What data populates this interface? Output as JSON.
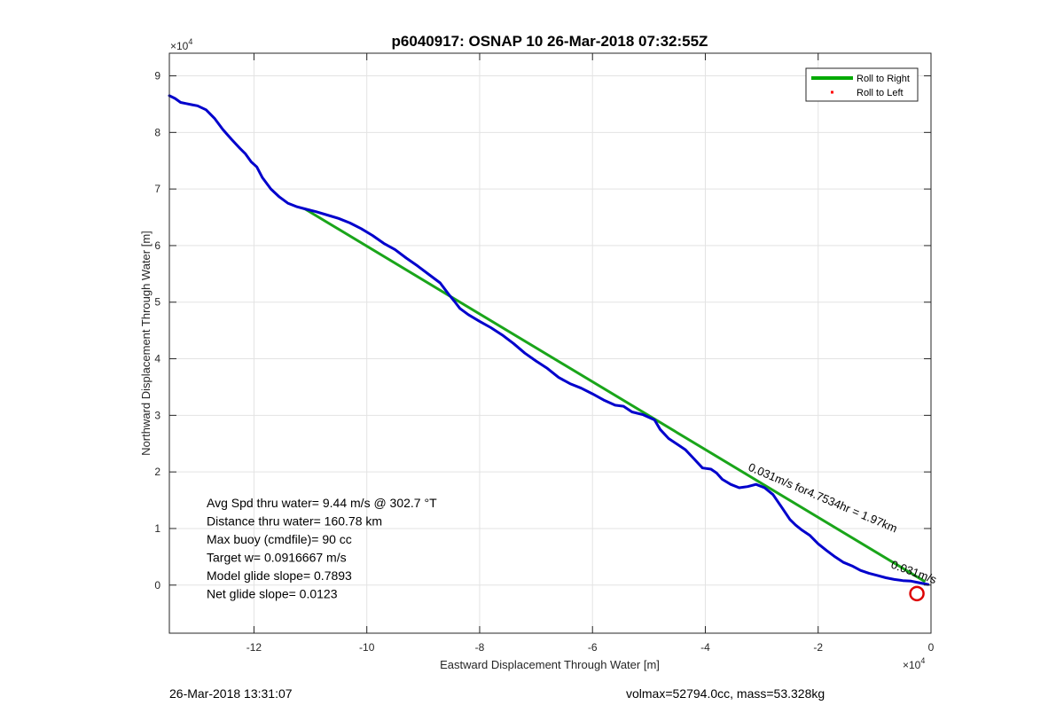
{
  "chart_data": {
    "type": "line",
    "title": "p6040917: OSNAP 10 26-Mar-2018 07:32:55Z",
    "xlabel": "Eastward Displacement Through Water [m]",
    "ylabel": "Northward Displacement Through Water [m]",
    "x_exponent_label": "×10",
    "y_exponent_label": "×10",
    "exponent_power": "4",
    "xlim": [
      -135000,
      0
    ],
    "ylim": [
      -8500,
      94000
    ],
    "xticks": [
      -120000,
      -100000,
      -80000,
      -60000,
      -40000,
      -20000,
      0
    ],
    "xticklabels": [
      "-12",
      "-10",
      "-8",
      "-6",
      "-4",
      "-2",
      "0"
    ],
    "yticks": [
      0,
      10000,
      20000,
      30000,
      40000,
      50000,
      60000,
      70000,
      80000,
      90000
    ],
    "yticklabels": [
      "0",
      "1",
      "2",
      "3",
      "4",
      "5",
      "6",
      "7",
      "8",
      "9"
    ],
    "grid": true,
    "legend_position": "top-right",
    "legend": [
      {
        "label": "Roll to Right",
        "color": "#00aa00",
        "marker": "line"
      },
      {
        "label": "Roll to Left",
        "color": "#ff0000",
        "marker": "dot"
      }
    ],
    "series": [
      {
        "name": "Roll to Right",
        "color": "#1aa51a",
        "style": "line",
        "x": [
          -111000,
          -1200
        ],
        "y": [
          66500,
          700
        ]
      },
      {
        "color": "#0000cc",
        "style": "line",
        "x": [
          -135000,
          -134000,
          -133000,
          -132000,
          -131000,
          -130000,
          -128500,
          -127000,
          -125500,
          -124000,
          -122500,
          -121500,
          -120500,
          -119500,
          -118500,
          -117000,
          -115500,
          -114000,
          -112500,
          -111000,
          -109000,
          -107000,
          -105000,
          -103000,
          -101000,
          -99000,
          -97000,
          -95000,
          -93000,
          -91000,
          -89000,
          -87000,
          -85500,
          -84500,
          -83500,
          -82000,
          -80000,
          -78000,
          -76000,
          -74000,
          -72000,
          -70000,
          -68000,
          -66000,
          -64000,
          -62000,
          -60000,
          -58000,
          -56000,
          -54500,
          -53000,
          -51000,
          -49000,
          -48000,
          -46500,
          -45000,
          -43500,
          -42000,
          -40500,
          -39000,
          -38000,
          -37000,
          -35500,
          -34000,
          -32500,
          -31000,
          -29500,
          -28000,
          -26500,
          -25000,
          -24000,
          -23000,
          -21500,
          -20000,
          -18500,
          -17000,
          -15500,
          -14000,
          -12500,
          -11000,
          -9500,
          -8000,
          -6500,
          -5000,
          -3500,
          -2500,
          -1500,
          -500
        ],
        "y": [
          86500,
          86000,
          85300,
          85100,
          84900,
          84700,
          84000,
          82500,
          80500,
          78800,
          77200,
          76200,
          74800,
          73900,
          72000,
          70000,
          68600,
          67500,
          66900,
          66500,
          66000,
          65400,
          64800,
          64000,
          63000,
          61800,
          60400,
          59300,
          57800,
          56400,
          54900,
          53400,
          51400,
          50200,
          48900,
          47800,
          46600,
          45500,
          44200,
          42700,
          41000,
          39600,
          38300,
          36700,
          35600,
          34800,
          33800,
          32700,
          31800,
          31600,
          30600,
          30100,
          29200,
          27500,
          25900,
          24900,
          23900,
          22300,
          20700,
          20500,
          19800,
          18700,
          17800,
          17200,
          17400,
          17800,
          17200,
          16000,
          13800,
          11600,
          10600,
          9800,
          8800,
          7300,
          6100,
          5000,
          4000,
          3400,
          2600,
          2100,
          1700,
          1300,
          1000,
          800,
          700,
          500,
          300,
          100
        ]
      }
    ],
    "red_circle": {
      "x": -2500,
      "y": -1500
    },
    "annotations": [
      "Avg Spd thru water=  9.44 m/s @ 302.7 °T",
      "Distance thru water= 160.78 km",
      "Max buoy (cmdfile)= 90 cc",
      "Target w= 0.0916667 m/s",
      "Model glide slope= 0.7893",
      "Net glide slope= 0.0123"
    ],
    "track_label": "0.031m/s for4.7534hr = 1.97km",
    "overlap_label": "0.031m/s",
    "footer_left": "26-Mar-2018 13:31:07",
    "footer_right": "volmax=52794.0cc, mass=53.328kg"
  }
}
